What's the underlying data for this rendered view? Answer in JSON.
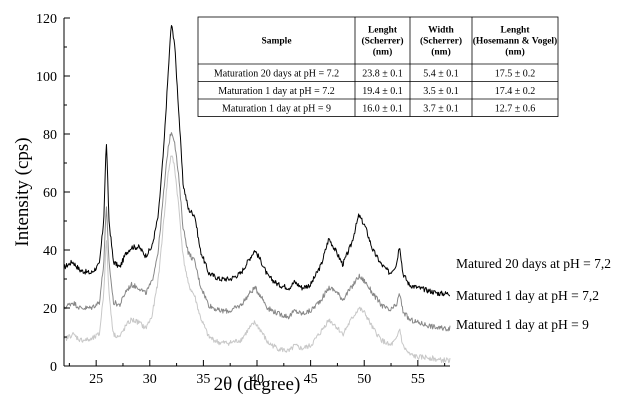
{
  "chart_data": {
    "type": "line",
    "xlabel": "2θ (degree)",
    "ylabel": "Intensity (cps)",
    "xlim": [
      22,
      58
    ],
    "ylim": [
      0,
      120
    ],
    "x_ticks": [
      25,
      30,
      35,
      40,
      45,
      50,
      55
    ],
    "y_ticks": [
      0,
      20,
      40,
      60,
      80,
      100,
      120
    ],
    "grid": false,
    "series": [
      {
        "name": "Matured 20 days at pH = 7,2",
        "color": "#000000",
        "points": [
          [
            22.0,
            34
          ],
          [
            22.8,
            36
          ],
          [
            23.5,
            33
          ],
          [
            24.5,
            32
          ],
          [
            25.3,
            35
          ],
          [
            25.7,
            50
          ],
          [
            25.95,
            78
          ],
          [
            26.2,
            50
          ],
          [
            26.6,
            36
          ],
          [
            27.2,
            34
          ],
          [
            27.8,
            39
          ],
          [
            28.3,
            41
          ],
          [
            29.0,
            41
          ],
          [
            29.6,
            38
          ],
          [
            30.2,
            41
          ],
          [
            30.8,
            52
          ],
          [
            31.3,
            75
          ],
          [
            31.7,
            100
          ],
          [
            32.0,
            118
          ],
          [
            32.3,
            112
          ],
          [
            32.7,
            88
          ],
          [
            33.1,
            63
          ],
          [
            33.6,
            54
          ],
          [
            34.2,
            52
          ],
          [
            34.7,
            40
          ],
          [
            35.5,
            32
          ],
          [
            36.5,
            30
          ],
          [
            37.5,
            30
          ],
          [
            38.5,
            32
          ],
          [
            39.3,
            37
          ],
          [
            39.8,
            40
          ],
          [
            40.4,
            36
          ],
          [
            41.0,
            31
          ],
          [
            42.0,
            28
          ],
          [
            43.0,
            27
          ],
          [
            43.5,
            29
          ],
          [
            44.2,
            27
          ],
          [
            45.0,
            28
          ],
          [
            46.0,
            35
          ],
          [
            46.7,
            44
          ],
          [
            47.3,
            40
          ],
          [
            48.0,
            35
          ],
          [
            48.8,
            42
          ],
          [
            49.5,
            52
          ],
          [
            50.1,
            48
          ],
          [
            50.8,
            40
          ],
          [
            51.6,
            35
          ],
          [
            52.4,
            32
          ],
          [
            53.0,
            35
          ],
          [
            53.3,
            42
          ],
          [
            53.6,
            32
          ],
          [
            54.2,
            28
          ],
          [
            55.0,
            27
          ],
          [
            56.0,
            26
          ],
          [
            57.0,
            25
          ],
          [
            58.0,
            25
          ]
        ]
      },
      {
        "name": "Matured 1 day at pH = 7,2",
        "color": "#888888",
        "points": [
          [
            22.0,
            20
          ],
          [
            22.8,
            22
          ],
          [
            23.5,
            20
          ],
          [
            24.5,
            20
          ],
          [
            25.3,
            22
          ],
          [
            25.7,
            35
          ],
          [
            25.95,
            55
          ],
          [
            26.2,
            36
          ],
          [
            26.6,
            22
          ],
          [
            27.2,
            21
          ],
          [
            27.8,
            26
          ],
          [
            28.3,
            28
          ],
          [
            29.0,
            27
          ],
          [
            29.6,
            25
          ],
          [
            30.2,
            29
          ],
          [
            30.8,
            40
          ],
          [
            31.3,
            60
          ],
          [
            31.7,
            75
          ],
          [
            32.0,
            81
          ],
          [
            32.3,
            78
          ],
          [
            32.7,
            65
          ],
          [
            33.1,
            48
          ],
          [
            33.6,
            39
          ],
          [
            34.2,
            36
          ],
          [
            34.7,
            28
          ],
          [
            35.5,
            21
          ],
          [
            36.5,
            19
          ],
          [
            37.5,
            19
          ],
          [
            38.5,
            21
          ],
          [
            39.3,
            25
          ],
          [
            39.8,
            27
          ],
          [
            40.4,
            24
          ],
          [
            41.0,
            20
          ],
          [
            42.0,
            18
          ],
          [
            43.0,
            17
          ],
          [
            43.5,
            19
          ],
          [
            44.2,
            18
          ],
          [
            45.0,
            19
          ],
          [
            46.0,
            23
          ],
          [
            46.7,
            27
          ],
          [
            47.3,
            26
          ],
          [
            48.0,
            23
          ],
          [
            48.8,
            27
          ],
          [
            49.5,
            31
          ],
          [
            50.1,
            29
          ],
          [
            50.8,
            25
          ],
          [
            51.6,
            21
          ],
          [
            52.4,
            19
          ],
          [
            53.0,
            21
          ],
          [
            53.3,
            25
          ],
          [
            53.6,
            19
          ],
          [
            54.2,
            16
          ],
          [
            55.0,
            15
          ],
          [
            56.0,
            14
          ],
          [
            57.0,
            13
          ],
          [
            58.0,
            13
          ]
        ]
      },
      {
        "name": "Matured 1 day at pH = 9",
        "color": "#c8c8c8",
        "points": [
          [
            22.0,
            9
          ],
          [
            22.8,
            11
          ],
          [
            23.5,
            9
          ],
          [
            24.5,
            9
          ],
          [
            25.3,
            11
          ],
          [
            25.7,
            25
          ],
          [
            25.95,
            44
          ],
          [
            26.2,
            25
          ],
          [
            26.6,
            11
          ],
          [
            27.2,
            10
          ],
          [
            27.8,
            14
          ],
          [
            28.3,
            16
          ],
          [
            29.0,
            15
          ],
          [
            29.6,
            13
          ],
          [
            30.2,
            17
          ],
          [
            30.8,
            30
          ],
          [
            31.3,
            50
          ],
          [
            31.7,
            66
          ],
          [
            32.0,
            73
          ],
          [
            32.3,
            69
          ],
          [
            32.7,
            55
          ],
          [
            33.1,
            38
          ],
          [
            33.6,
            28
          ],
          [
            34.2,
            24
          ],
          [
            34.7,
            17
          ],
          [
            35.5,
            10
          ],
          [
            36.5,
            8
          ],
          [
            37.5,
            8
          ],
          [
            38.5,
            9
          ],
          [
            39.3,
            13
          ],
          [
            39.8,
            15
          ],
          [
            40.4,
            12
          ],
          [
            41.0,
            8
          ],
          [
            42.0,
            6
          ],
          [
            43.0,
            5
          ],
          [
            43.5,
            7
          ],
          [
            44.2,
            6
          ],
          [
            45.0,
            7
          ],
          [
            46.0,
            12
          ],
          [
            46.7,
            16
          ],
          [
            47.3,
            14
          ],
          [
            48.0,
            11
          ],
          [
            48.8,
            16
          ],
          [
            49.5,
            20
          ],
          [
            50.1,
            18
          ],
          [
            50.8,
            13
          ],
          [
            51.6,
            9
          ],
          [
            52.4,
            7
          ],
          [
            53.0,
            9
          ],
          [
            53.3,
            13
          ],
          [
            53.6,
            7
          ],
          [
            54.2,
            4
          ],
          [
            55.0,
            3
          ],
          [
            56.0,
            3
          ],
          [
            57.0,
            2
          ],
          [
            58.0,
            2
          ]
        ]
      }
    ],
    "table": {
      "headers": [
        [
          "Sample"
        ],
        [
          "Lenght",
          "(Scherrer)",
          "(nm)"
        ],
        [
          "Width",
          "(Scherrer)",
          "(nm)"
        ],
        [
          "Lenght",
          "(Hosemann & Vogel)",
          "(nm)"
        ]
      ],
      "rows": [
        [
          "Maturation 20 days at pH = 7.2",
          "23.8 ± 0.1",
          "5.4 ± 0.1",
          "17.5 ± 0.2"
        ],
        [
          "Maturation 1 day at pH = 7.2",
          "19.4 ± 0.1",
          "3.5 ± 0.1",
          "17.4 ± 0.2"
        ],
        [
          "Maturation 1 day at pH = 9",
          "16.0 ± 0.1",
          "3.7 ± 0.1",
          "12.7 ± 0.6"
        ]
      ]
    }
  }
}
